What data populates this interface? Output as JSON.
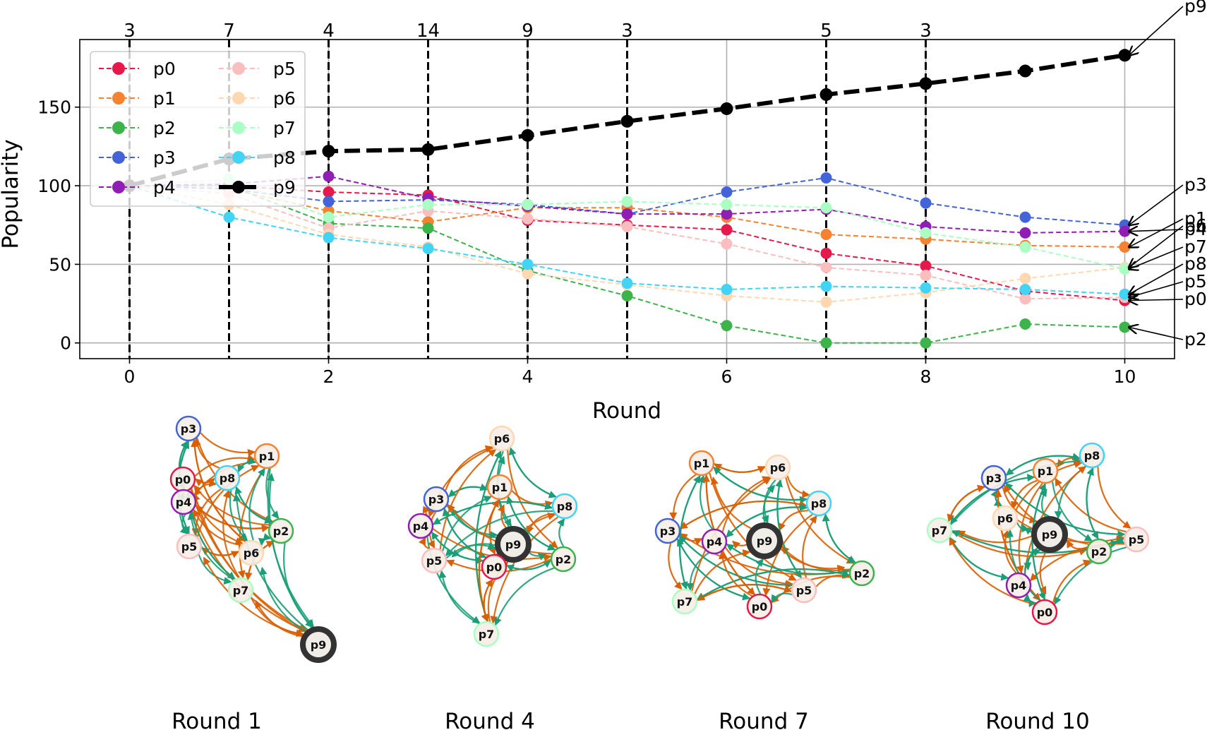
{
  "chart_data": [
    {
      "type": "line",
      "xlabel": "Round",
      "ylabel": "Popularity",
      "xlim": [
        -0.5,
        10.5
      ],
      "ylim": [
        -10,
        193
      ],
      "x_ticks": [
        0,
        2,
        4,
        6,
        8,
        10
      ],
      "y_ticks": [
        0,
        50,
        100,
        150
      ],
      "grid": true,
      "legend_position": "top-left, two columns",
      "x": [
        0,
        1,
        2,
        3,
        4,
        5,
        6,
        7,
        8,
        9,
        10
      ],
      "series": [
        {
          "name": "p0",
          "color": "#e6194b",
          "values": [
            100,
            100,
            96,
            94,
            78,
            75,
            72,
            57,
            49,
            33,
            27
          ]
        },
        {
          "name": "p1",
          "color": "#f58231",
          "values": [
            100,
            98,
            84,
            77,
            86,
            86,
            80,
            69,
            66,
            62,
            61
          ]
        },
        {
          "name": "p2",
          "color": "#3cb44b",
          "values": [
            100,
            100,
            76,
            73,
            46,
            30,
            11,
            0,
            0,
            12,
            10
          ]
        },
        {
          "name": "p3",
          "color": "#4363d8",
          "values": [
            100,
            98,
            90,
            91,
            88,
            82,
            96,
            105,
            89,
            80,
            75
          ]
        },
        {
          "name": "p4",
          "color": "#911eb4",
          "values": [
            100,
            101,
            106,
            92,
            87,
            82,
            82,
            85,
            74,
            70,
            71
          ]
        },
        {
          "name": "p5",
          "color": "#fabebe",
          "values": [
            100,
            95,
            73,
            84,
            79,
            74,
            63,
            48,
            43,
            28,
            29
          ]
        },
        {
          "name": "p6",
          "color": "#ffd8b1",
          "values": [
            100,
            88,
            69,
            61,
            44,
            37,
            30,
            26,
            32,
            41,
            48
          ]
        },
        {
          "name": "p7",
          "color": "#aaffc3",
          "values": [
            100,
            104,
            80,
            88,
            88,
            90,
            88,
            86,
            70,
            61,
            47
          ]
        },
        {
          "name": "p8",
          "color": "#42d4f4",
          "values": [
            100,
            80,
            67,
            60,
            50,
            38,
            34,
            36,
            35,
            34,
            31
          ]
        },
        {
          "name": "p9",
          "color": "#000000",
          "values": [
            100,
            117,
            122,
            123,
            132,
            141,
            149,
            158,
            165,
            173,
            183
          ]
        }
      ],
      "vertical_markers": [
        {
          "x": 0,
          "label": "3"
        },
        {
          "x": 1,
          "label": "7"
        },
        {
          "x": 2,
          "label": "4"
        },
        {
          "x": 3,
          "label": "14"
        },
        {
          "x": 4,
          "label": "9"
        },
        {
          "x": 5,
          "label": "3"
        },
        {
          "x": 7,
          "label": "5"
        },
        {
          "x": 8,
          "label": "3"
        }
      ],
      "end_annotations": [
        "p9",
        "p3",
        "p1",
        "p6",
        "p4",
        "p7",
        "p8",
        "p5",
        "p0",
        "p2"
      ]
    },
    {
      "type": "network",
      "title": "Round 1",
      "nodes": [
        "p3",
        "p1",
        "p0",
        "p8",
        "p4",
        "p2",
        "p5",
        "p6",
        "p7",
        "p9"
      ],
      "edge_colors": [
        "#d95f02",
        "#1b9e77"
      ]
    },
    {
      "type": "network",
      "title": "Round 4",
      "nodes": [
        "p6",
        "p1",
        "p3",
        "p8",
        "p4",
        "p9",
        "p5",
        "p0",
        "p2",
        "p7"
      ],
      "edge_colors": [
        "#d95f02",
        "#1b9e77"
      ]
    },
    {
      "type": "network",
      "title": "Round 7",
      "nodes": [
        "p1",
        "p6",
        "p8",
        "p3",
        "p4",
        "p9",
        "p2",
        "p5",
        "p7",
        "p0"
      ],
      "edge_colors": [
        "#d95f02",
        "#1b9e77"
      ]
    },
    {
      "type": "network",
      "title": "Round 10",
      "nodes": [
        "p8",
        "p3",
        "p1",
        "p7",
        "p6",
        "p9",
        "p5",
        "p2",
        "p4",
        "p0"
      ],
      "edge_colors": [
        "#d95f02",
        "#1b9e77"
      ]
    }
  ]
}
